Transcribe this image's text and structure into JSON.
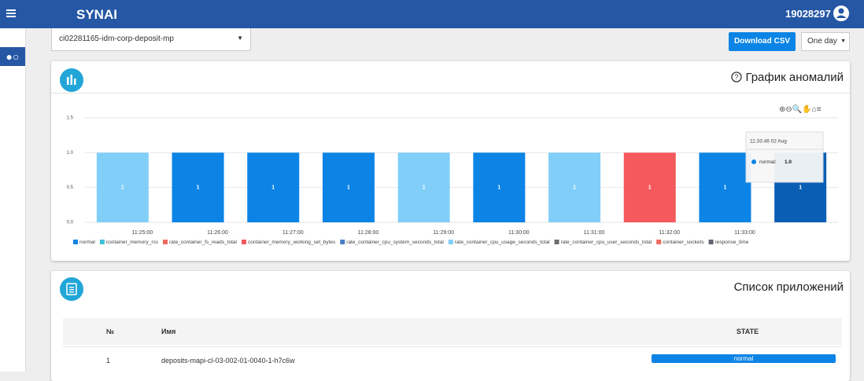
{
  "header": {
    "logo": "SYNAI",
    "user_id": "19028297"
  },
  "toolbar": {
    "namespace": "ci02281165-idm-corp-deposit-mp",
    "download": "Download CSV",
    "period": "One day"
  },
  "chart_data": {
    "type": "bar",
    "title": "График аномалий",
    "values": [
      1,
      1,
      1,
      1,
      1,
      1,
      1,
      1,
      1,
      1
    ],
    "colors": [
      "#81cff9",
      "#0b84e6",
      "#0b84e6",
      "#0b84e6",
      "#81cff9",
      "#0b84e6",
      "#81cff9",
      "#f5585d",
      "#0b84e6",
      "#0a5fb5"
    ],
    "xticks": [
      "11:25:00",
      "11:26:00",
      "11:27:00",
      "11:28:00",
      "11:29:00",
      "11:30:00",
      "11:31:00",
      "11:32:00",
      "11:33:00"
    ],
    "ylim": [
      0,
      1.5
    ],
    "yticks": [
      {
        "value": 0,
        "label": "0.0"
      },
      {
        "value": 0.5,
        "label": "0.5"
      },
      {
        "value": 1,
        "label": "1.0"
      },
      {
        "value": 1.5,
        "label": "1.5"
      }
    ],
    "grid": true,
    "legend": [
      {
        "name": "normal",
        "color": "#0b84e6"
      },
      {
        "name": "container_memory_rss",
        "color": "#3fc2d8"
      },
      {
        "name": "rate_container_fs_reads_total",
        "color": "#f06a5e"
      },
      {
        "name": "container_memory_working_set_bytes",
        "color": "#f5585d"
      },
      {
        "name": "rate_container_cpu_system_seconds_total",
        "color": "#4a7fc4"
      },
      {
        "name": "rate_container_cpu_usage_seconds_total",
        "color": "#81cff9"
      },
      {
        "name": "rate_container_cpu_user_seconds_total",
        "color": "#6e6e6e"
      },
      {
        "name": "container_sockets",
        "color": "#f06a5e"
      },
      {
        "name": "response_time",
        "color": "#5f6470"
      }
    ],
    "tooltip": {
      "title": "11:33:46 02 Aug",
      "series": "normal:",
      "value": "1.0"
    }
  },
  "apps": {
    "title": "Список приложений",
    "columns": [
      "№",
      "Имя",
      "STATE"
    ],
    "rows": [
      [
        "1",
        "deposits-mapi-cl-03-002-01-0040-1-h7c6w",
        "normal"
      ]
    ]
  }
}
